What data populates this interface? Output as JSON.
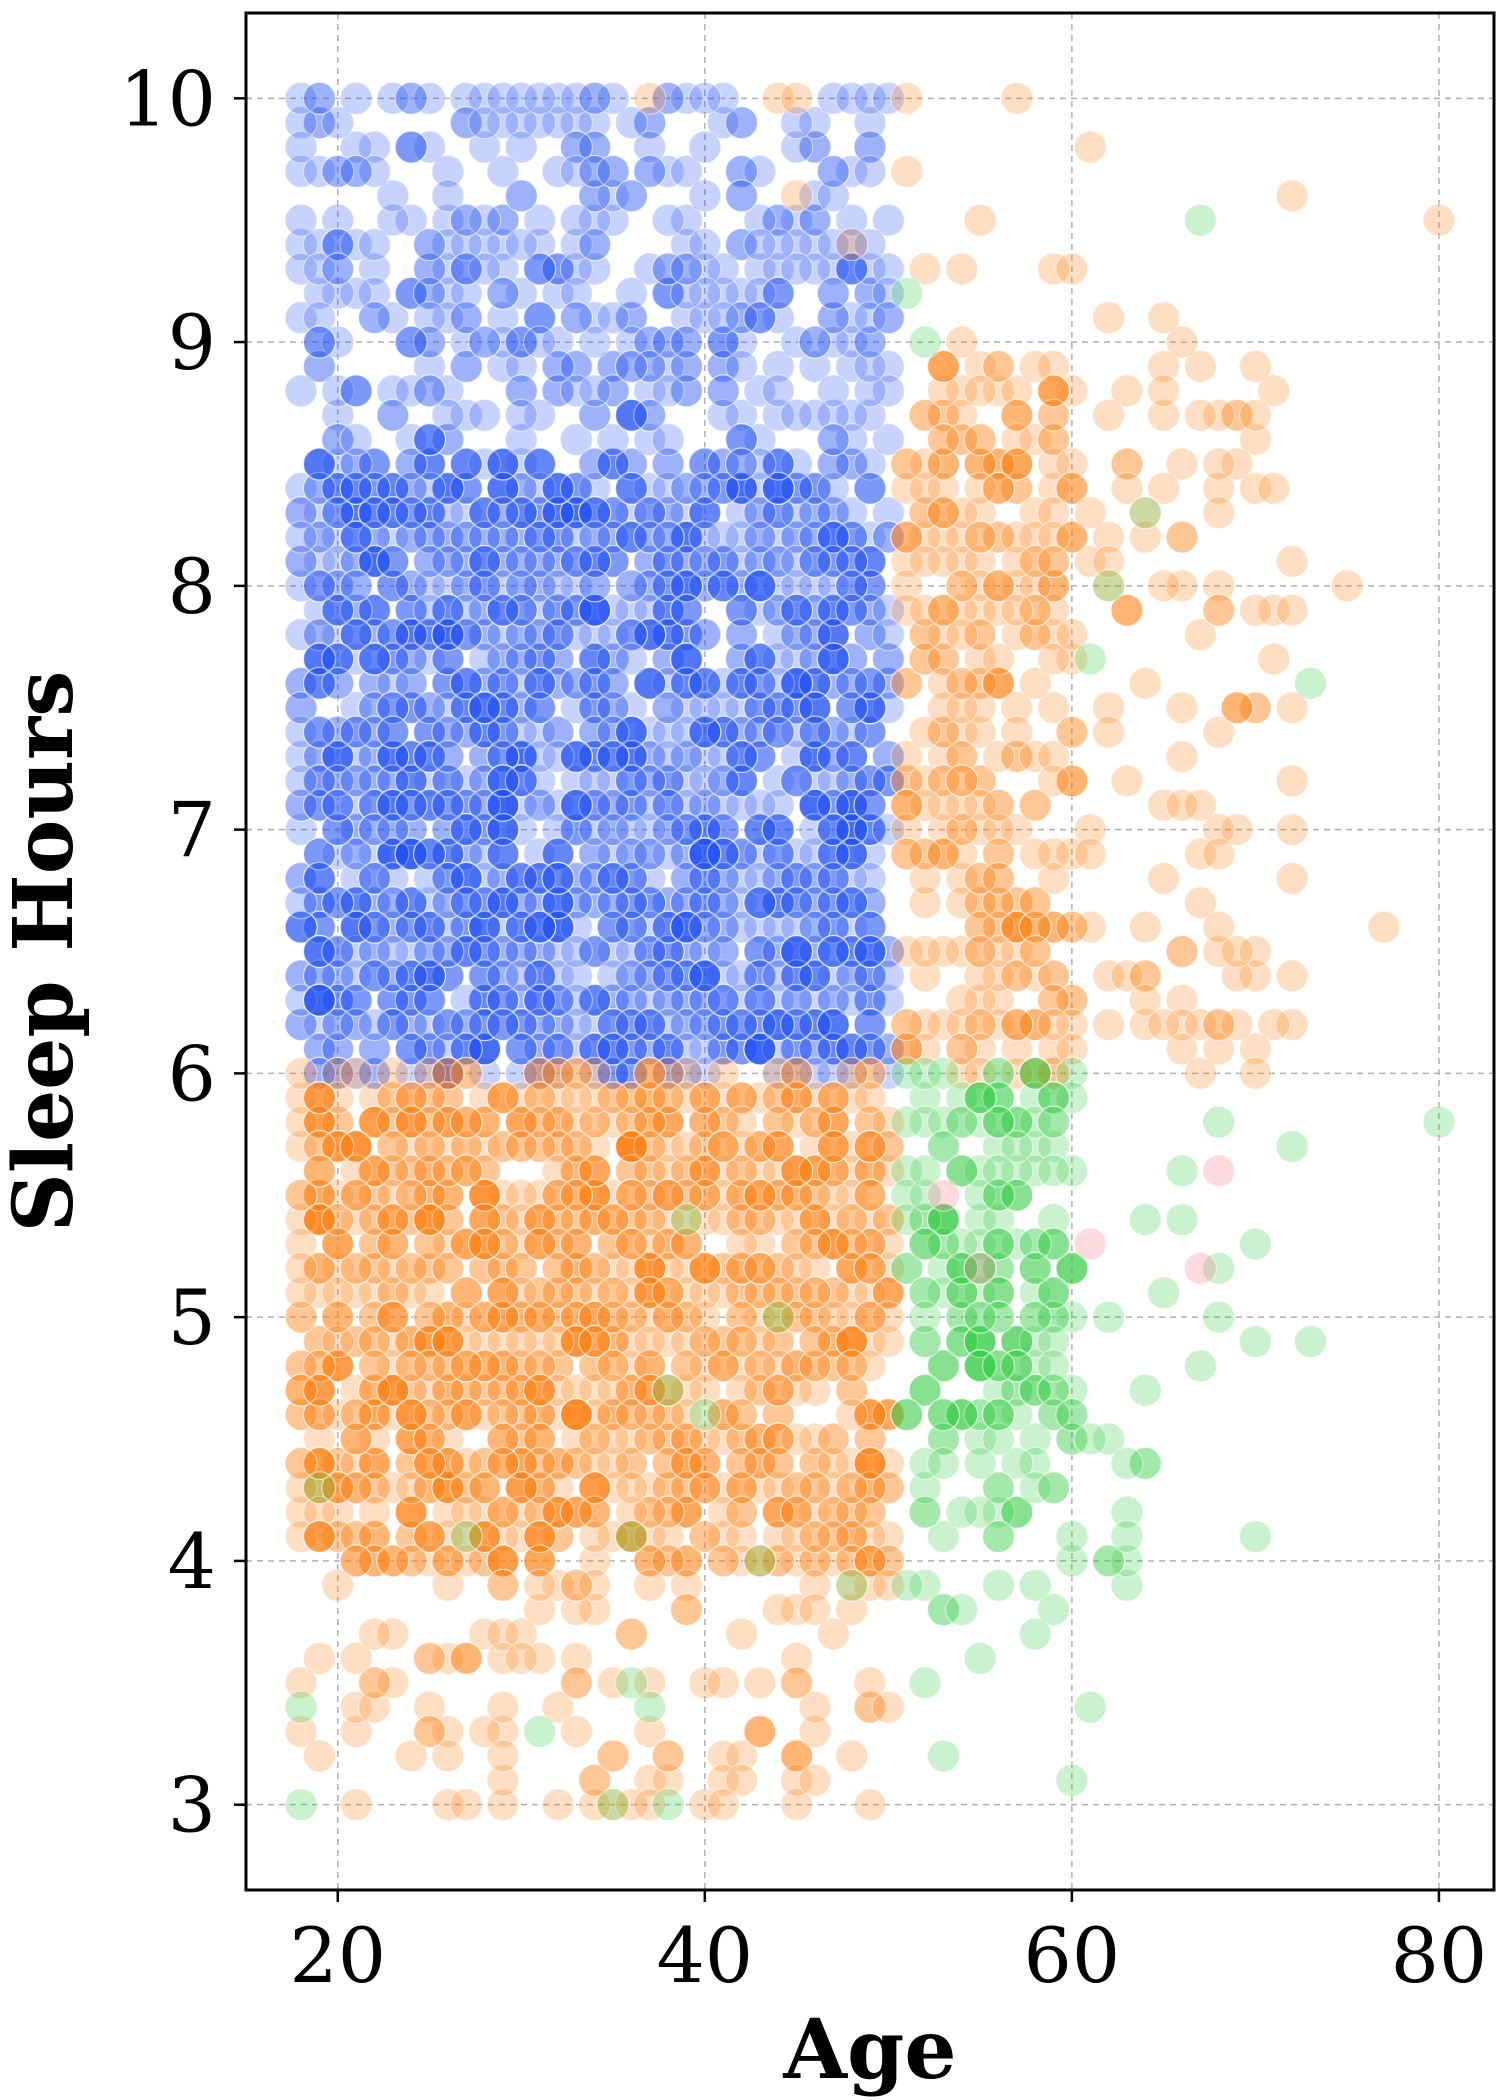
{
  "chart_data": {
    "type": "scatter",
    "title": "",
    "xlabel": "Age",
    "ylabel": "Sleep Hours",
    "xlim": [
      15,
      83
    ],
    "ylim": [
      2.65,
      10.35
    ],
    "xticks": [
      20,
      40,
      60,
      80
    ],
    "yticks": [
      3,
      4,
      5,
      6,
      7,
      8,
      9,
      10
    ],
    "grid": true,
    "legend": "none",
    "point_opacity": 0.25,
    "colors": {
      "blue": "#1f4ff5",
      "orange": "#ff7f0e",
      "green": "#2ecc40",
      "pink": "#f26d7d"
    },
    "series": [
      {
        "color_key": "blue",
        "regions": [
          {
            "x_range": [
              18,
              50
            ],
            "y_range": [
              6.0,
              8.5
            ],
            "count": 1900
          },
          {
            "x_range": [
              18,
              50
            ],
            "y_range": [
              8.5,
              9.5
            ],
            "count": 300
          },
          {
            "x_range": [
              18,
              50
            ],
            "y_range": [
              9.5,
              10.0
            ],
            "count": 90
          }
        ],
        "points": [
          [
            18,
            10.0
          ],
          [
            19,
            10.0
          ],
          [
            21,
            10.0
          ],
          [
            23,
            10.0
          ],
          [
            24,
            10.0
          ],
          [
            31,
            10.0
          ],
          [
            33,
            10.0
          ],
          [
            34,
            10.0
          ],
          [
            38,
            10.0
          ],
          [
            40,
            10.0
          ],
          [
            45,
            9.9
          ],
          [
            47,
            10.0
          ],
          [
            48,
            10.0
          ],
          [
            49,
            10.0
          ],
          [
            50,
            10.0
          ],
          [
            18,
            9.8
          ],
          [
            24,
            9.8
          ],
          [
            40,
            9.8
          ],
          [
            49,
            9.7
          ],
          [
            20,
            9.7
          ],
          [
            30,
            9.6
          ],
          [
            36,
            9.6
          ],
          [
            42,
            9.6
          ],
          [
            18,
            9.5
          ],
          [
            27,
            9.5
          ],
          [
            22,
            9.4
          ],
          [
            34,
            9.4
          ],
          [
            43,
            9.4
          ],
          [
            20,
            9.3
          ],
          [
            29,
            9.2
          ],
          [
            44,
            9.2
          ],
          [
            47,
            9.2
          ],
          [
            19,
            9.0
          ],
          [
            33,
            9.1
          ],
          [
            39,
            9.0
          ],
          [
            46,
            9.0
          ]
        ]
      },
      {
        "color_key": "orange",
        "regions": [
          {
            "x_range": [
              18,
              50
            ],
            "y_range": [
              4.0,
              6.0
            ],
            "count": 1300
          },
          {
            "x_range": [
              18,
              50
            ],
            "y_range": [
              3.0,
              4.0
            ],
            "count": 110
          },
          {
            "x_range": [
              51,
              60
            ],
            "y_range": [
              6.0,
              9.0
            ],
            "count": 300
          },
          {
            "x_range": [
              58,
              72
            ],
            "y_range": [
              6.0,
              9.0
            ],
            "count": 110
          }
        ],
        "points": [
          [
            37,
            10.0
          ],
          [
            44,
            10.0
          ],
          [
            45,
            10.0
          ],
          [
            51,
            10.0
          ],
          [
            57,
            10.0
          ],
          [
            51,
            9.7
          ],
          [
            61,
            9.8
          ],
          [
            45,
            9.6
          ],
          [
            55,
            9.5
          ],
          [
            72,
            9.6
          ],
          [
            80,
            9.5
          ],
          [
            48,
            9.4
          ],
          [
            52,
            9.3
          ],
          [
            54,
            9.3
          ],
          [
            59,
            9.3
          ],
          [
            60,
            9.3
          ],
          [
            62,
            9.1
          ],
          [
            65,
            9.1
          ],
          [
            70,
            8.9
          ],
          [
            65,
            8.8
          ],
          [
            70,
            8.7
          ],
          [
            62,
            8.7
          ],
          [
            70,
            8.4
          ],
          [
            71,
            8.4
          ],
          [
            68,
            8.3
          ],
          [
            75,
            8.0
          ],
          [
            77,
            6.6
          ],
          [
            70,
            7.9
          ],
          [
            72,
            7.9
          ],
          [
            69,
            7.5
          ],
          [
            72,
            7.5
          ],
          [
            72,
            7.2
          ],
          [
            72,
            6.8
          ],
          [
            68,
            6.9
          ],
          [
            68,
            6.2
          ],
          [
            69,
            6.5
          ],
          [
            70,
            6.0
          ],
          [
            36,
            3.0
          ],
          [
            37,
            3.0
          ],
          [
            41,
            3.0
          ],
          [
            21,
            3.0
          ],
          [
            27,
            3.0
          ],
          [
            32,
            3.0
          ],
          [
            29,
            3.2
          ],
          [
            46,
            3.1
          ],
          [
            48,
            3.2
          ],
          [
            43,
            3.3
          ],
          [
            45,
            3.5
          ],
          [
            22,
            3.5
          ],
          [
            30,
            3.6
          ],
          [
            42,
            3.7
          ],
          [
            40,
            3.5
          ],
          [
            33,
            3.9
          ],
          [
            50,
            3.9
          ],
          [
            48,
            3.9
          ]
        ]
      },
      {
        "color_key": "green",
        "regions": [
          {
            "x_range": [
              51,
              60
            ],
            "y_range": [
              4.5,
              6.0
            ],
            "count": 200
          },
          {
            "x_range": [
              51,
              64
            ],
            "y_range": [
              3.8,
              4.6
            ],
            "count": 45
          }
        ],
        "points": [
          [
            67,
            9.5
          ],
          [
            51,
            9.2
          ],
          [
            52,
            9.0
          ],
          [
            64,
            8.3
          ],
          [
            62,
            8.0
          ],
          [
            61,
            7.7
          ],
          [
            73,
            7.6
          ],
          [
            80,
            5.8
          ],
          [
            68,
            5.8
          ],
          [
            72,
            5.7
          ],
          [
            66,
            5.6
          ],
          [
            64,
            5.4
          ],
          [
            66,
            5.4
          ],
          [
            70,
            5.3
          ],
          [
            68,
            5.2
          ],
          [
            65,
            5.1
          ],
          [
            62,
            5.0
          ],
          [
            68,
            5.0
          ],
          [
            70,
            4.9
          ],
          [
            73,
            4.9
          ],
          [
            64,
            4.7
          ],
          [
            67,
            4.8
          ],
          [
            70,
            4.1
          ],
          [
            63,
            4.1
          ],
          [
            60,
            4.1
          ],
          [
            59,
            4.3
          ],
          [
            56,
            4.1
          ],
          [
            58,
            3.7
          ],
          [
            52,
            3.5
          ],
          [
            55,
            3.6
          ],
          [
            53,
            3.2
          ],
          [
            61,
            3.4
          ],
          [
            60,
            3.1
          ],
          [
            18,
            3.0
          ],
          [
            35,
            3.0
          ],
          [
            38,
            3.0
          ],
          [
            18,
            3.4
          ],
          [
            37,
            3.4
          ],
          [
            31,
            3.3
          ],
          [
            36,
            3.5
          ],
          [
            40,
            4.6
          ],
          [
            44,
            5.0
          ],
          [
            43,
            4.0
          ],
          [
            39,
            5.4
          ],
          [
            48,
            3.9
          ],
          [
            27,
            4.1
          ],
          [
            19,
            4.3
          ],
          [
            36,
            4.1
          ],
          [
            38,
            4.7
          ]
        ]
      },
      {
        "color_key": "pink",
        "regions": [],
        "points": [
          [
            68,
            5.6
          ],
          [
            61,
            5.3
          ],
          [
            67,
            5.2
          ],
          [
            55,
            5.2
          ],
          [
            53,
            5.5
          ]
        ]
      }
    ]
  }
}
